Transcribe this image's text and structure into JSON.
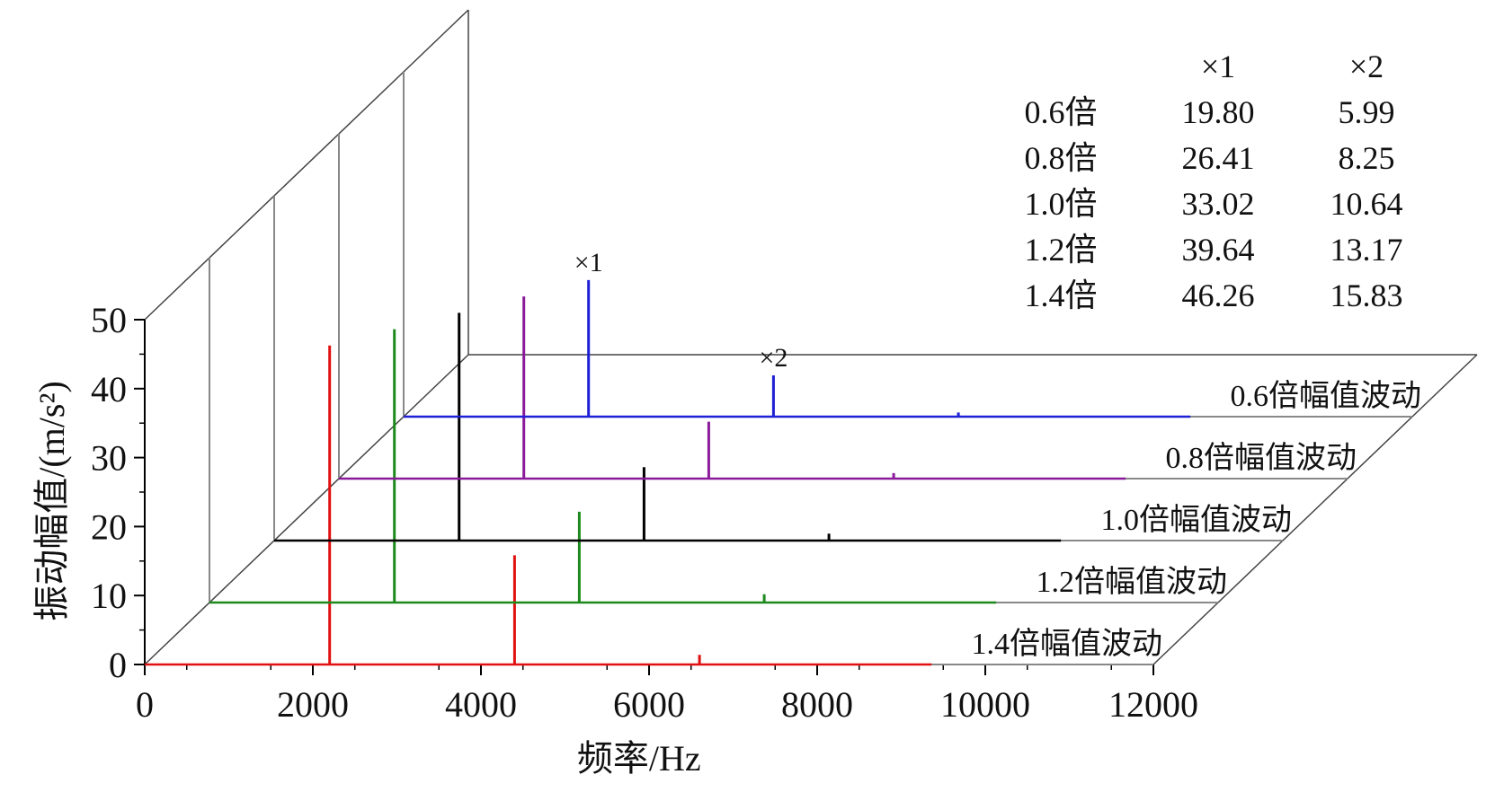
{
  "chart_data": {
    "type": "3d-waterfall-bar",
    "xlabel": "频率/Hz",
    "ylabel": "振动幅值/(m/s²)",
    "xlim": [
      0,
      12000
    ],
    "ylim": [
      0,
      50
    ],
    "x_ticks": [
      "0",
      "2000",
      "4000",
      "6000",
      "8000",
      "10000",
      "12000"
    ],
    "y_ticks": [
      "0",
      "10",
      "20",
      "30",
      "40",
      "50"
    ],
    "series": [
      {
        "name": "0.6倍幅值波动",
        "color": "#1f1fd6",
        "x": [
          2200,
          4400,
          6600
        ],
        "values": [
          19.8,
          5.99,
          0.6
        ]
      },
      {
        "name": "0.8倍幅值波动",
        "color": "#8a1a9a",
        "x": [
          2200,
          4400,
          6600
        ],
        "values": [
          26.41,
          8.25,
          0.8
        ]
      },
      {
        "name": "1.0倍幅值波动",
        "color": "#000000",
        "x": [
          2200,
          4400,
          6600
        ],
        "values": [
          33.02,
          10.64,
          1.0
        ]
      },
      {
        "name": "1.2倍幅值波动",
        "color": "#1e8a1e",
        "x": [
          2200,
          4400,
          6600
        ],
        "values": [
          39.64,
          13.17,
          1.2
        ]
      },
      {
        "name": "1.4倍幅值波动",
        "color": "#e01010",
        "x": [
          2200,
          4400,
          6600
        ],
        "values": [
          46.26,
          15.83,
          1.4
        ]
      }
    ],
    "annotations": [
      "×1",
      "×2"
    ],
    "table": {
      "headers": [
        "",
        "×1",
        "×2"
      ],
      "rows": [
        [
          "0.6倍",
          "19.80",
          "5.99"
        ],
        [
          "0.8倍",
          "26.41",
          "8.25"
        ],
        [
          "1.0倍",
          "33.02",
          "10.64"
        ],
        [
          "1.2倍",
          "39.64",
          "13.17"
        ],
        [
          "1.4倍",
          "46.26",
          "15.83"
        ]
      ]
    },
    "colors": {
      "axis": "#000000",
      "back_wall": "#888888"
    }
  }
}
